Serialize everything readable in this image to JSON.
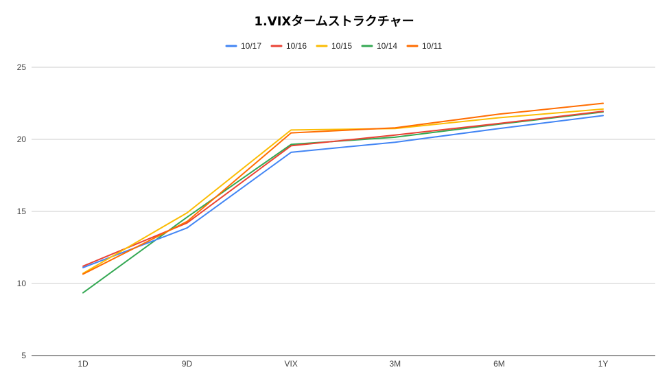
{
  "chart_data": {
    "type": "line",
    "title": "1.VIXタームストラクチャー",
    "categories": [
      "1D",
      "9D",
      "VIX",
      "3M",
      "6M",
      "1Y"
    ],
    "ylim": [
      5,
      25
    ],
    "yticks": [
      "5",
      "10",
      "15",
      "20",
      "25"
    ],
    "grid": true,
    "legend_position": "top",
    "series": [
      {
        "name": "10/14",
        "color": "#34a853",
        "values": [
          9.35,
          14.6,
          19.65,
          20.15,
          21.05,
          21.9
        ]
      },
      {
        "name": "10/16",
        "color": "#ea4335",
        "values": [
          11.2,
          14.2,
          19.55,
          20.3,
          21.1,
          21.95
        ]
      },
      {
        "name": "10/17",
        "color": "#4285f4",
        "values": [
          11.1,
          13.85,
          19.1,
          19.8,
          20.75,
          21.65
        ]
      },
      {
        "name": "10/15",
        "color": "#fbbc04",
        "values": [
          10.7,
          14.9,
          20.65,
          20.75,
          21.5,
          22.1
        ]
      },
      {
        "name": "10/11",
        "color": "#ff6d01",
        "values": [
          10.65,
          14.3,
          20.45,
          20.8,
          21.75,
          22.5
        ]
      }
    ],
    "legend_order": [
      "10/17",
      "10/16",
      "10/15",
      "10/14",
      "10/11"
    ]
  }
}
